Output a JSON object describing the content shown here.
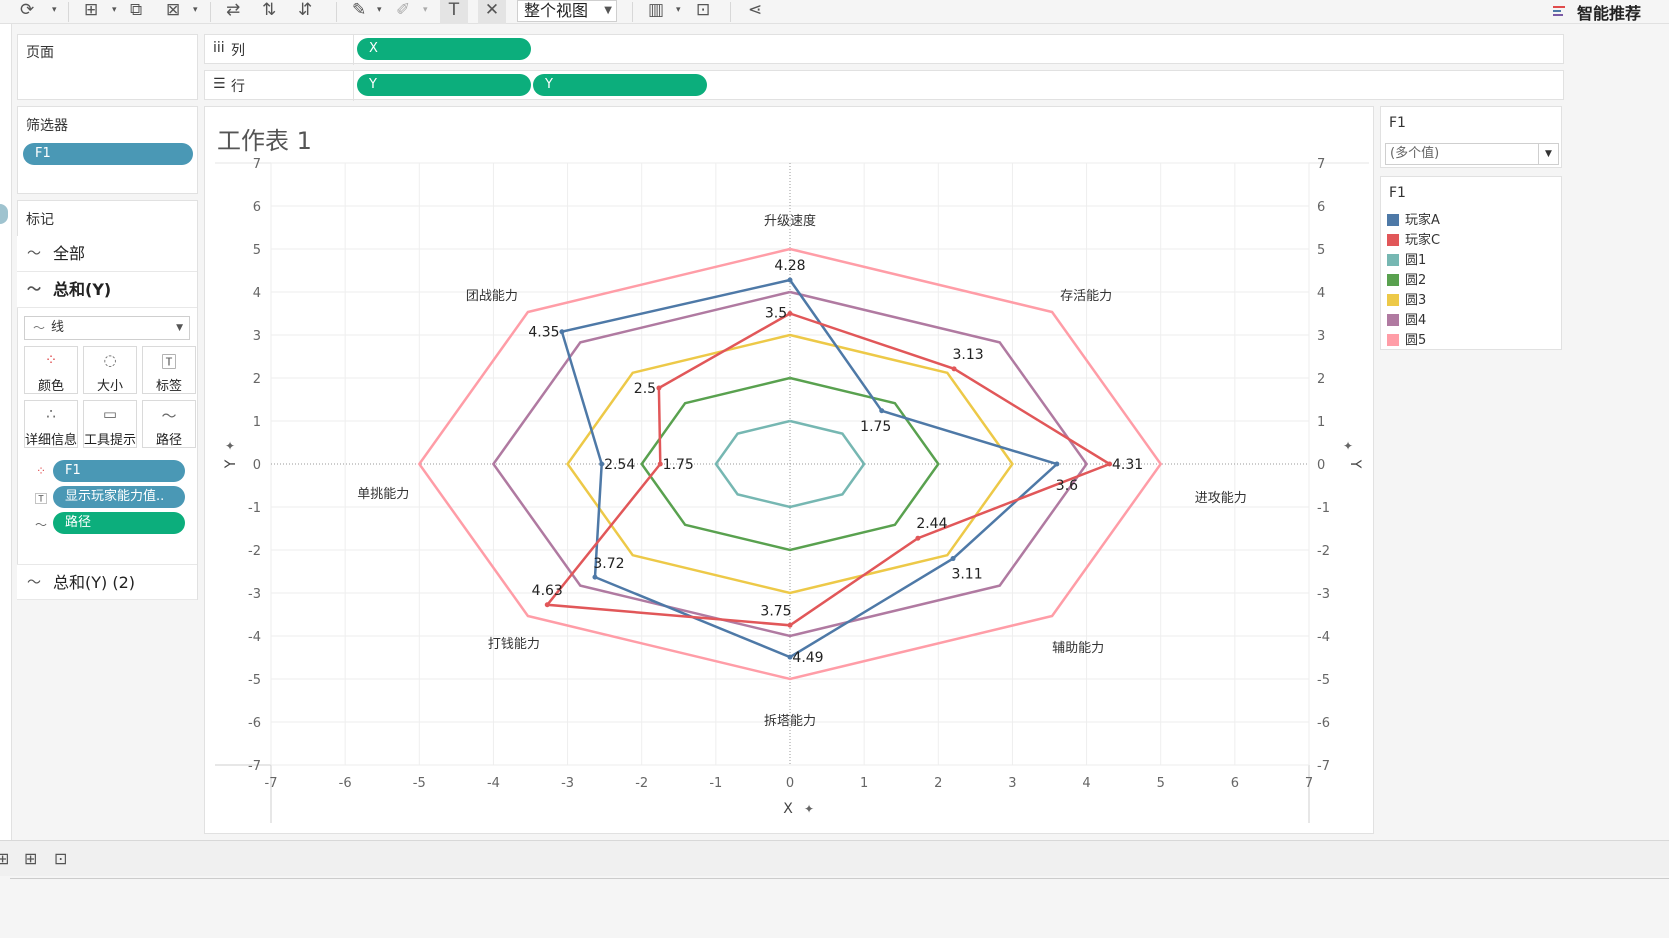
{
  "toolbar": {
    "view_dropdown": "整个视图",
    "recommend_label": "智能推荐"
  },
  "shelves": {
    "pages_title": "页面",
    "columns_label": "列",
    "columns_pills": [
      "X"
    ],
    "rows_label": "行",
    "rows_pills": [
      "Y",
      "Y"
    ]
  },
  "filters": {
    "title": "筛选器",
    "pills": [
      "F1"
    ]
  },
  "marks": {
    "title": "标记",
    "all_label": "全部",
    "sum_label": "总和(Y)",
    "mark_type": "线",
    "buttons": [
      "颜色",
      "大小",
      "标签",
      "详细信息",
      "工具提示",
      "路径"
    ],
    "fields": [
      "F1",
      "显示玩家能力值..",
      "路径"
    ],
    "sum2_label": "总和(Y) (2)"
  },
  "sheet": {
    "title": "工作表 1"
  },
  "filter_card": {
    "title": "F1",
    "value": "(多个值)"
  },
  "legend": {
    "title": "F1",
    "items": [
      {
        "label": "玩家A",
        "color": "#4e79a7"
      },
      {
        "label": "玩家C",
        "color": "#e15759"
      },
      {
        "label": "圆1",
        "color": "#76b7b2"
      },
      {
        "label": "圆2",
        "color": "#59a14f"
      },
      {
        "label": "圆3",
        "color": "#edc948"
      },
      {
        "label": "圆4",
        "color": "#b07aa1"
      },
      {
        "label": "圆5",
        "color": "#ff9da7"
      }
    ]
  },
  "chart_data": {
    "type": "line",
    "xlabel": "X",
    "ylabel": "Y",
    "xlim": [
      -7,
      7
    ],
    "ylim": [
      -7,
      7
    ],
    "x_ticks": [
      -7,
      -6,
      -5,
      -4,
      -3,
      -2,
      -1,
      0,
      1,
      2,
      3,
      4,
      5,
      6,
      7
    ],
    "y_ticks": [
      7,
      6,
      5,
      4,
      3,
      2,
      1,
      0,
      -1,
      -2,
      -3,
      -4,
      -5,
      -6,
      -7
    ],
    "grid": true,
    "axis_names": [
      "升级速度",
      "存活能力",
      "进攻能力",
      "辅助能力",
      "拆塔能力",
      "打钱能力",
      "单挑能力",
      "团战能力"
    ],
    "axis_angles_deg": [
      90,
      45,
      0,
      -45,
      -90,
      -135,
      180,
      135
    ],
    "rings": [
      {
        "name": "圆1",
        "radius": 1,
        "color": "#76b7b2"
      },
      {
        "name": "圆2",
        "radius": 2,
        "color": "#59a14f"
      },
      {
        "name": "圆3",
        "radius": 3,
        "color": "#edc948"
      },
      {
        "name": "圆4",
        "radius": 4,
        "color": "#b07aa1"
      },
      {
        "name": "圆5",
        "radius": 5,
        "color": "#ff9da7"
      }
    ],
    "series": [
      {
        "name": "玩家A",
        "color": "#4e79a7",
        "values": [
          4.28,
          1.75,
          3.6,
          3.11,
          4.49,
          3.72,
          2.54,
          4.35
        ]
      },
      {
        "name": "玩家C",
        "color": "#e15759",
        "values": [
          3.5,
          3.13,
          4.31,
          2.44,
          3.75,
          4.63,
          1.75,
          2.5
        ]
      }
    ]
  }
}
